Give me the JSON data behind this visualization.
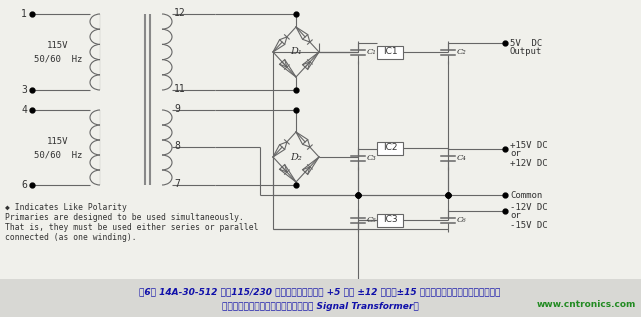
{
  "bg_color": "#f0f0eb",
  "line_color": "#666666",
  "text_color": "#333333",
  "caption_bg": "#d8d8d4",
  "caption_text_line1": "图6： 14A-30-512 采用115/230 伏输入电压，适用于 +5 伏或 ±12 伏直流±15 伏直流电源，具体取决于用户如何",
  "caption_text_line2": "连接初级和次级妁绕组。（图片来源： Signal Transformer）",
  "website_text": "www.cntronics.com",
  "note_line1": "◆ Indicates Like Polarity",
  "note_line2": "Primaries are designed to be used simultaneously.",
  "note_line3": "That is, they must be used either series or parallel",
  "note_line4": "connected (as one winding).",
  "label_115v": "115V",
  "label_hz": "50/60  Hz",
  "output_5v_line1": "5V  DC",
  "output_5v_line2": "Output",
  "output_plus_line1": "+15V DC",
  "output_plus_line2": "or",
  "output_plus_line3": "+12V DC",
  "output_common": "Common",
  "output_minus_line1": "-12V DC",
  "output_minus_line2": "or",
  "output_minus_line3": "-15V DC"
}
